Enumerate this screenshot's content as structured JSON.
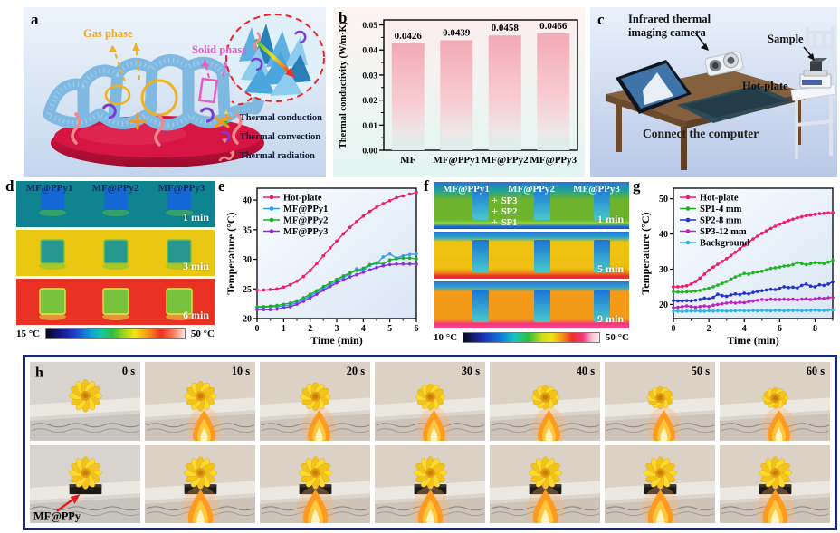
{
  "figure": {
    "panel_a": {
      "label": "a",
      "gas_phase_label": "Gas phase",
      "solid_phase_label": "Solid phase",
      "legend": [
        {
          "icon": "thermal-conduction-icon",
          "label": "Thermal conduction"
        },
        {
          "icon": "thermal-convection-icon",
          "label": "Thermal convection"
        },
        {
          "icon": "thermal-radiation-icon",
          "label": "Thermal radiation"
        }
      ]
    },
    "panel_b": {
      "label": "b"
    },
    "panel_c": {
      "label": "c",
      "camera_label_line1": "Infrared thermal",
      "camera_label_line2": "imaging camera",
      "sample_label": "Sample",
      "hotplate_label": "Hot-plate",
      "computer_label": "Connect the computer"
    },
    "panel_d": {
      "label": "d",
      "columns": [
        "MF@PPy1",
        "MF@PPy2",
        "MF@PPy3"
      ],
      "frames": [
        {
          "time": "1 min",
          "bg": "#0f8490",
          "sample_color": "#1468d6",
          "sample_edge": "#58b84a"
        },
        {
          "time": "3 min",
          "bg": "#eac812",
          "sample_color": "#27988f",
          "sample_edge": "#79c23d"
        },
        {
          "time": "6 min",
          "bg": "#e93223",
          "sample_color": "#79c23d",
          "sample_edge": "#e3e84a"
        }
      ],
      "scale_min": "15 °C",
      "scale_max": "50 °C"
    },
    "panel_e": {
      "label": "e"
    },
    "panel_f": {
      "label": "f",
      "columns": [
        "MF@PPy1",
        "MF@PPy2",
        "MF@PPy3"
      ],
      "sp_labels": [
        "SP3",
        "SP2",
        "SP1"
      ],
      "frames": [
        {
          "time": "1 min"
        },
        {
          "time": "5 min"
        },
        {
          "time": "9 min"
        }
      ],
      "scale_min": "10 °C",
      "scale_max": "50 °C"
    },
    "panel_g": {
      "label": "g"
    },
    "panel_h": {
      "label": "h",
      "times": [
        "0 s",
        "10 s",
        "20 s",
        "30 s",
        "40 s",
        "50 s",
        "60 s"
      ],
      "annotation": "MF@PPy"
    }
  },
  "chart_data": [
    {
      "panel": "b",
      "type": "bar",
      "categories": [
        "MF",
        "MF@PPy1",
        "MF@PPy2",
        "MF@PPy3"
      ],
      "values": [
        0.0426,
        0.0439,
        0.0458,
        0.0466
      ],
      "value_labels": [
        "0.0426",
        "0.0439",
        "0.0458",
        "0.0466"
      ],
      "title": "",
      "xlabel": "",
      "ylabel": "Thermal conductivity (W/m·K)",
      "ylim": [
        0,
        0.052
      ],
      "yticks": [
        0,
        0.01,
        0.02,
        0.03,
        0.04,
        0.05
      ],
      "ytick_labels": [
        "0.00",
        "0.01",
        "0.02",
        "0.03",
        "0.04",
        "0.05"
      ],
      "grid": false,
      "bar_color_top": "#f2aab6",
      "bar_color_bottom": "#d8efec"
    },
    {
      "panel": "e",
      "type": "line",
      "xlabel": "Time (min)",
      "ylabel": "Temperature (°C)",
      "xlim": [
        0,
        6
      ],
      "ylim": [
        20,
        42
      ],
      "xticks": [
        0,
        1,
        2,
        3,
        4,
        5,
        6
      ],
      "yticks": [
        20,
        25,
        30,
        35,
        40
      ],
      "x_step": 0.25,
      "grid": false,
      "legend_position": "top-left",
      "series": [
        {
          "name": "Hot-plate",
          "color": "#f4156f",
          "values": [
            24.8,
            24.8,
            24.9,
            25.0,
            25.3,
            25.7,
            26.3,
            27.1,
            28.1,
            29.3,
            30.6,
            31.9,
            33.1,
            34.3,
            35.4,
            36.4,
            37.3,
            38.1,
            38.8,
            39.4,
            39.9,
            40.4,
            40.7,
            41.0,
            41.3
          ]
        },
        {
          "name": "MF@PPy1",
          "color": "#2e9df2",
          "values": [
            21.9,
            21.9,
            22.0,
            22.0,
            22.1,
            22.3,
            22.7,
            23.2,
            23.8,
            24.4,
            25.1,
            25.7,
            26.3,
            26.9,
            27.5,
            28.4,
            28.1,
            29.0,
            29.3,
            30.4,
            30.9,
            30.2,
            30.6,
            30.8,
            30.9
          ]
        },
        {
          "name": "MF@PPy2",
          "color": "#17b022",
          "values": [
            22.0,
            22.0,
            22.1,
            22.2,
            22.4,
            22.6,
            23.0,
            23.5,
            24.1,
            24.7,
            25.4,
            26.0,
            26.6,
            27.2,
            27.7,
            28.1,
            28.5,
            29.1,
            29.4,
            29.2,
            29.9,
            30.1,
            30.2,
            30.2,
            30.1
          ]
        },
        {
          "name": "MF@PPy3",
          "color": "#8a2be2",
          "values": [
            21.5,
            21.5,
            21.5,
            21.6,
            21.8,
            22.0,
            22.4,
            22.9,
            23.5,
            24.1,
            24.8,
            25.4,
            26.0,
            26.5,
            27.0,
            27.4,
            27.8,
            28.2,
            28.6,
            28.9,
            29.1,
            29.2,
            29.2,
            29.2,
            29.2
          ]
        }
      ]
    },
    {
      "panel": "g",
      "type": "line",
      "xlabel": "Time (min)",
      "ylabel": "Temperature (°C)",
      "xlim": [
        0,
        9
      ],
      "ylim": [
        16,
        53
      ],
      "xticks": [
        0,
        2,
        4,
        6,
        8
      ],
      "yticks": [
        20,
        30,
        40,
        50
      ],
      "x_step": 0.25,
      "grid": false,
      "legend_position": "top-left",
      "series": [
        {
          "name": "Hot-plate",
          "color": "#f4156f",
          "values": [
            25.0,
            25.0,
            25.1,
            25.3,
            25.8,
            26.5,
            27.5,
            28.6,
            29.7,
            30.6,
            31.4,
            32.2,
            33.0,
            33.9,
            34.8,
            35.8,
            36.8,
            37.7,
            38.6,
            39.4,
            40.2,
            40.9,
            41.6,
            42.2,
            42.8,
            43.3,
            43.8,
            44.2,
            44.6,
            44.9,
            45.2,
            45.4,
            45.6,
            45.8,
            45.9,
            46.0,
            46.1
          ]
        },
        {
          "name": "SP1-4 mm",
          "color": "#1db41d",
          "values": [
            23.6,
            23.5,
            23.5,
            23.6,
            23.7,
            23.8,
            24.0,
            24.3,
            24.6,
            25.0,
            25.5,
            26.0,
            26.5,
            27.2,
            27.8,
            28.3,
            28.8,
            28.6,
            29.0,
            29.2,
            29.4,
            29.8,
            30.2,
            30.4,
            30.6,
            30.9,
            31.0,
            31.3,
            31.9,
            31.6,
            31.3,
            31.6,
            31.9,
            31.8,
            31.6,
            32.0,
            32.5
          ]
        },
        {
          "name": "SP2-8 mm",
          "color": "#2233cc",
          "values": [
            21.1,
            21.0,
            21.0,
            21.1,
            21.0,
            21.2,
            21.4,
            21.8,
            21.6,
            22.0,
            22.9,
            22.5,
            22.3,
            22.7,
            23.0,
            22.8,
            23.2,
            23.0,
            23.4,
            23.7,
            23.9,
            24.1,
            24.3,
            24.2,
            24.6,
            25.0,
            24.8,
            24.9,
            24.7,
            25.4,
            25.8,
            25.2,
            25.0,
            25.6,
            25.4,
            25.8,
            26.4
          ]
        },
        {
          "name": "SP3-12 mm",
          "color": "#c21fc2",
          "values": [
            19.1,
            19.2,
            19.4,
            19.6,
            19.4,
            19.2,
            19.4,
            19.6,
            19.4,
            19.8,
            20.0,
            20.2,
            20.4,
            20.6,
            20.4,
            20.6,
            20.5,
            20.8,
            21.0,
            21.2,
            21.4,
            21.3,
            21.5,
            21.4,
            21.4,
            21.5,
            21.4,
            21.5,
            21.3,
            21.5,
            21.6,
            21.4,
            21.6,
            21.8,
            21.7,
            21.9,
            22.0
          ]
        },
        {
          "name": "Background",
          "color": "#2fb4e9",
          "values": [
            18.1,
            18.1,
            18.0,
            18.1,
            18.1,
            18.2,
            18.1,
            18.1,
            18.2,
            18.1,
            18.2,
            18.2,
            18.1,
            18.2,
            18.2,
            18.3,
            18.2,
            18.2,
            18.3,
            18.2,
            18.3,
            18.3,
            18.2,
            18.3,
            18.3,
            18.2,
            18.3,
            18.3,
            18.3,
            18.2,
            18.3,
            18.3,
            18.4,
            18.3,
            18.3,
            18.4,
            18.4
          ]
        }
      ]
    }
  ]
}
